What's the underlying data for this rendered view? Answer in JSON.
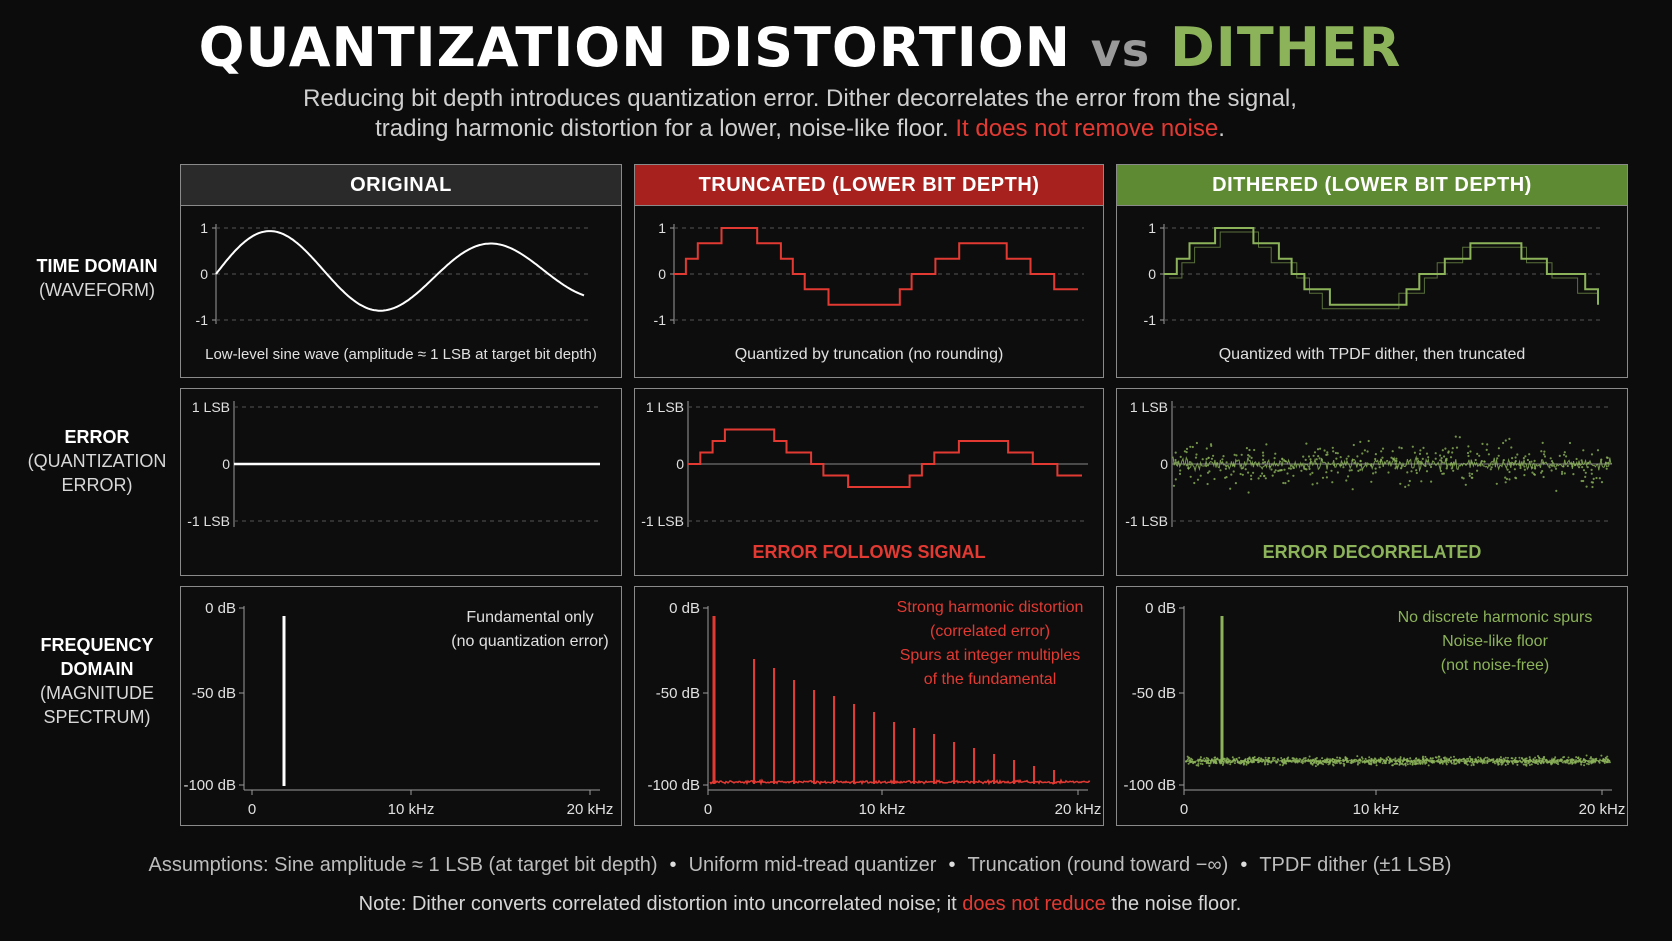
{
  "title": {
    "part1": "QUANTIZATION DISTORTION",
    "vs": "vs",
    "part2": "DITHER"
  },
  "subtitle": {
    "line1": "Reducing bit depth introduces quantization error. Dither decorrelates the error from the signal,",
    "line2": "trading harmonic distortion for a lower, noise-like floor.",
    "line2_red": "It does not remove noise",
    "line2_end": "."
  },
  "columns": {
    "original": "ORIGINAL",
    "truncated": "TRUNCATED (LOWER BIT DEPTH)",
    "dithered": "DITHERED (LOWER BIT DEPTH)"
  },
  "rows": {
    "time": {
      "bold": "TIME DOMAIN",
      "sub": "(WAVEFORM)"
    },
    "error": {
      "bold": "ERROR",
      "sub1": "(QUANTIZATION",
      "sub2": "ERROR)"
    },
    "freq": {
      "bold1": "FREQUENCY",
      "bold2": "DOMAIN",
      "sub1": "(MAGNITUDE",
      "sub2": "SPECTRUM)"
    }
  },
  "axes": {
    "time_ticks": [
      "1",
      "0",
      "-1"
    ],
    "error_ticks": [
      "1 LSB",
      "0",
      "-1 LSB"
    ],
    "freq_y_ticks": [
      "0 dB",
      "-50 dB",
      "-100 dB"
    ],
    "freq_x_ticks": [
      "0",
      "10 kHz",
      "20 kHz"
    ]
  },
  "captions": {
    "time_original": "Low-level sine wave (amplitude ≈ 1 LSB at target bit depth)",
    "time_truncated": "Quantized by truncation (no rounding)",
    "time_dithered": "Quantized with TPDF dither, then truncated",
    "error_truncated": "ERROR FOLLOWS SIGNAL",
    "error_dithered": "ERROR DECORRELATED"
  },
  "freq_notes": {
    "original": [
      "Fundamental only",
      "(no quantization error)"
    ],
    "truncated": [
      "Strong harmonic distortion",
      "(correlated error)",
      "Spurs at integer multiples",
      "of the fundamental"
    ],
    "dithered": [
      "No discrete harmonic spurs",
      "Noise-like floor",
      "(not noise-free)"
    ]
  },
  "footer": {
    "assumptions": [
      "Assumptions: Sine amplitude ≈ 1 LSB (at target bit depth)",
      "Uniform mid-tread quantizer",
      "Truncation (round toward −∞)",
      "TPDF dither (±1 LSB)"
    ],
    "note_start": "Note: Dither converts correlated distortion into uncorrelated noise; it",
    "note_red": "does not reduce",
    "note_end": "the noise floor.",
    "separator": "•"
  },
  "colors": {
    "red": "#e23a33",
    "green": "#8cb35a",
    "white": "#ffffff",
    "header_original": "#2a2a2a",
    "header_truncated": "#a7221e",
    "header_dithered": "#5f8a34"
  }
}
